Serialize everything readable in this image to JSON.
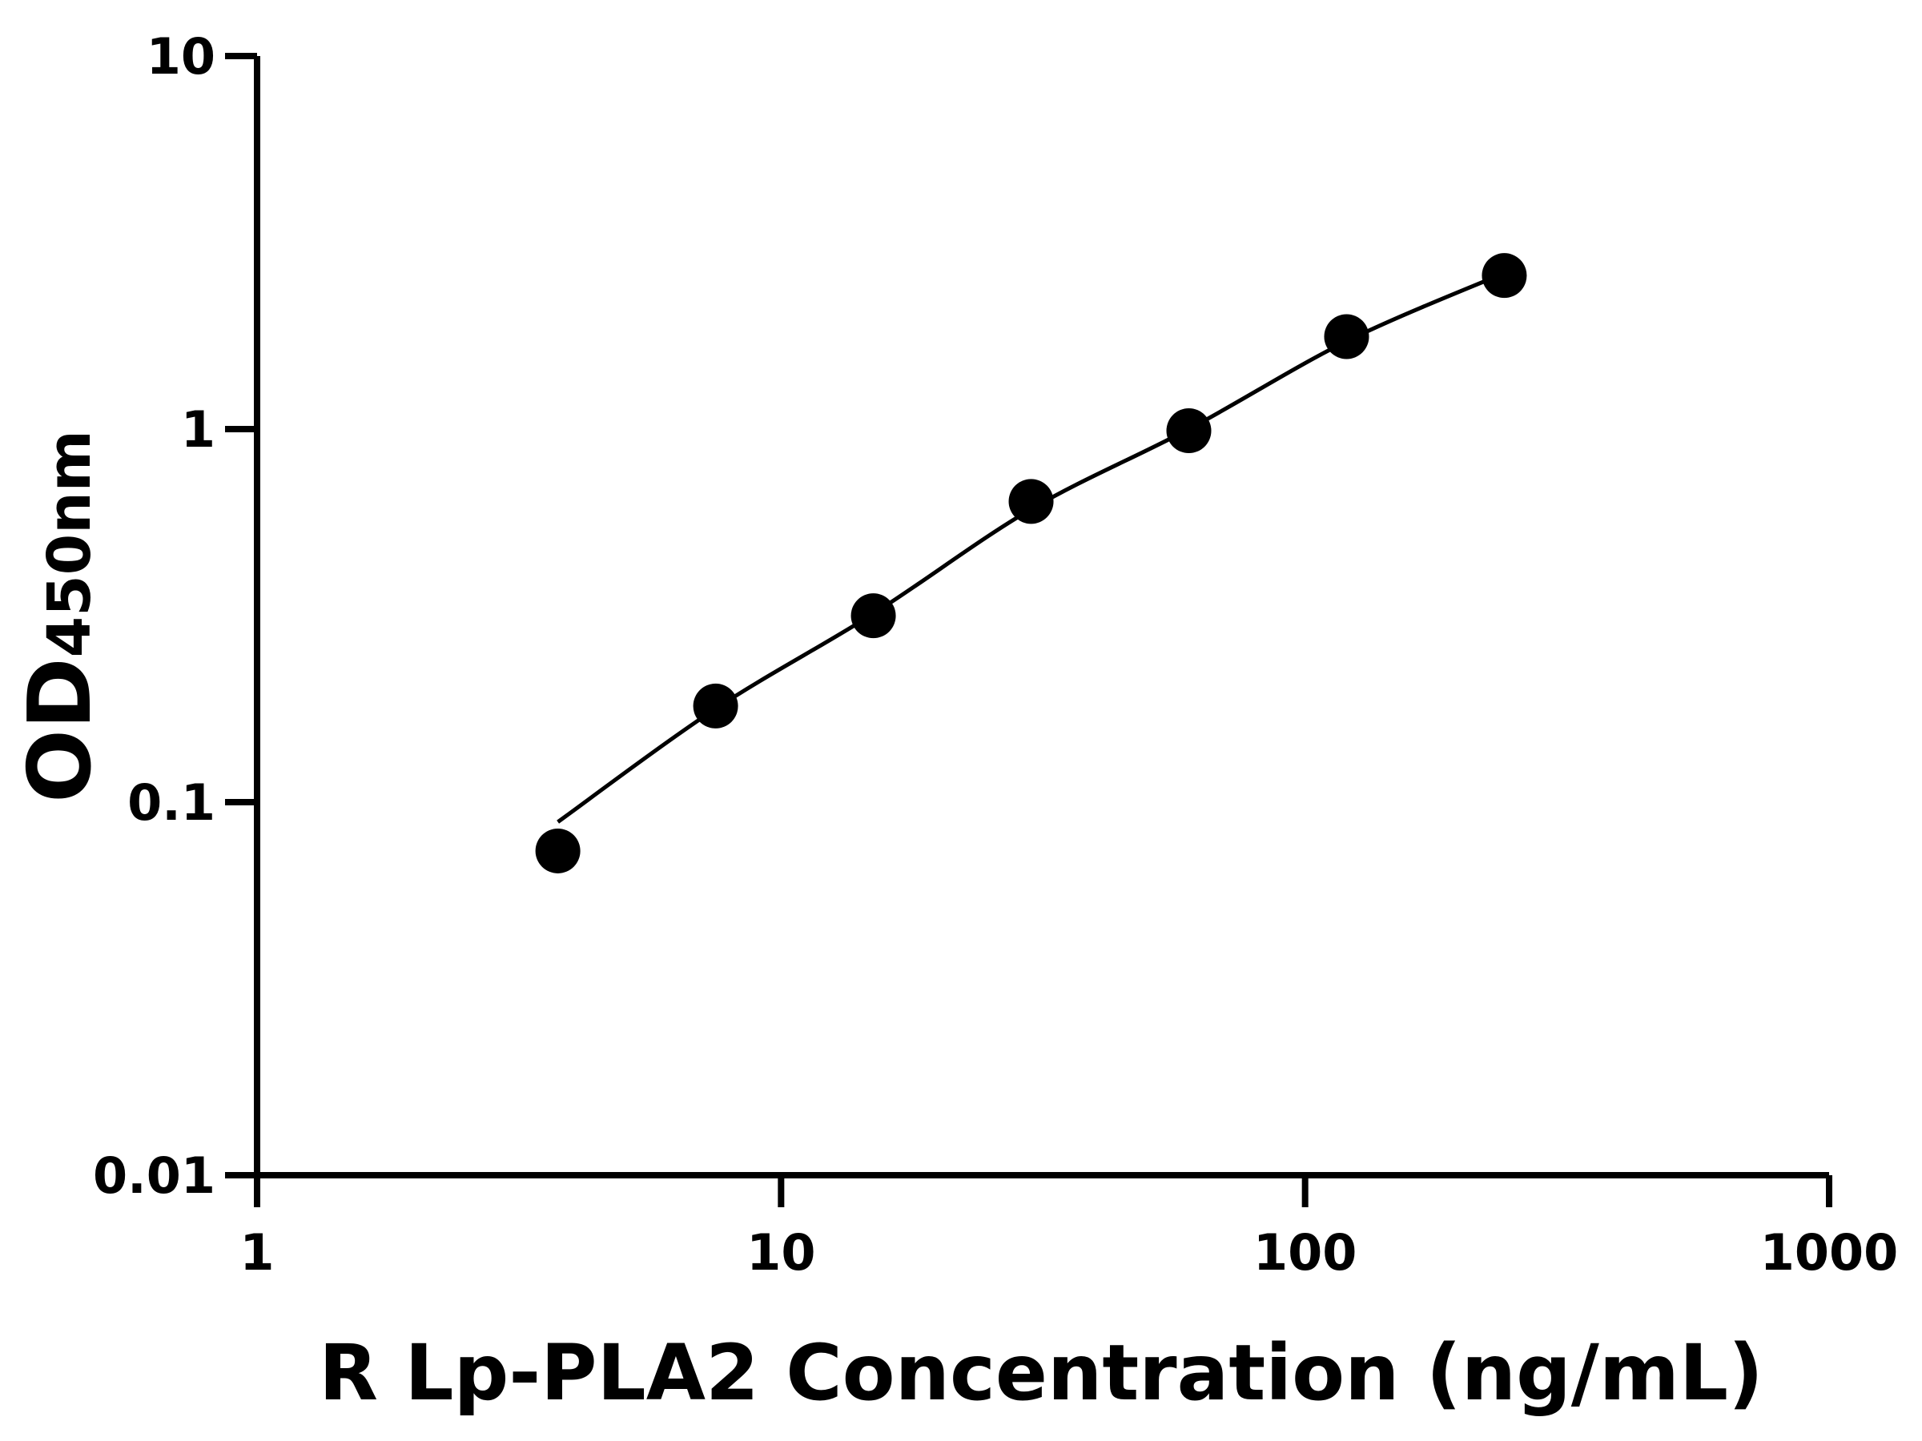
{
  "chart_data": {
    "type": "scatter",
    "x_label": "R Lp-PLA2 Concentration (ng/mL)",
    "y_label": "OD",
    "y_label_sub": "450nm",
    "log_x": true,
    "log_y": true,
    "xlim": [
      1,
      1000
    ],
    "xticks": [
      1,
      10,
      100,
      1000
    ],
    "ylim": [
      0.01,
      10
    ],
    "yticks": [
      0.01,
      0.1,
      1,
      10
    ],
    "color": "#000000",
    "x": [
      3.75,
      7.5,
      15,
      30,
      60,
      120,
      240
    ],
    "values": [
      0.074,
      0.181,
      0.316,
      0.64,
      0.99,
      1.77,
      2.58
    ],
    "curve": {
      "x": [
        3.75,
        7.5,
        15,
        30,
        60,
        120,
        240
      ],
      "values": [
        0.0885,
        0.178,
        0.32,
        0.61,
        1.0,
        1.72,
        2.62
      ]
    }
  }
}
